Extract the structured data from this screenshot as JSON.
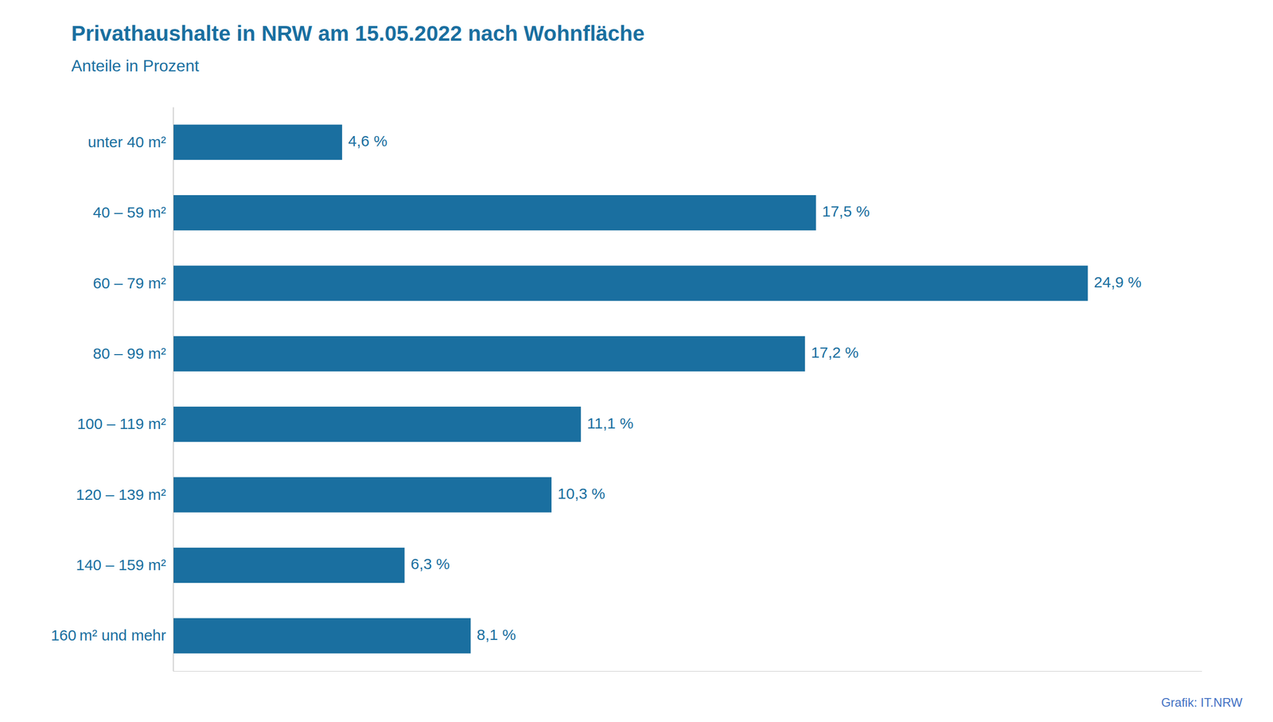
{
  "chart_data": {
    "type": "bar",
    "orientation": "horizontal",
    "title": "Privathaushalte in NRW am 15.05.2022 nach Wohnfläche",
    "subtitle": "Anteile in Prozent",
    "categories": [
      "unter 40 m²",
      "40 – 59 m²",
      "60 – 79 m²",
      "80 – 99 m²",
      "100 – 119 m²",
      "120 – 139 m²",
      "140 – 159 m²",
      "160 m² und mehr"
    ],
    "values": [
      4.6,
      17.5,
      24.9,
      17.2,
      11.1,
      10.3,
      6.3,
      8.1
    ],
    "value_labels": [
      "4,6 %",
      "17,5 %",
      "24,9 %",
      "17,2 %",
      "11,1 %",
      "10,3 %",
      "6,3 %",
      "8,1 %"
    ],
    "data_labels": true,
    "color": "#1a6fa0",
    "xlim": [
      0,
      28
    ],
    "tick_labels": "y",
    "grid": false,
    "annotations": [
      "Grafik: IT.NRW"
    ]
  }
}
